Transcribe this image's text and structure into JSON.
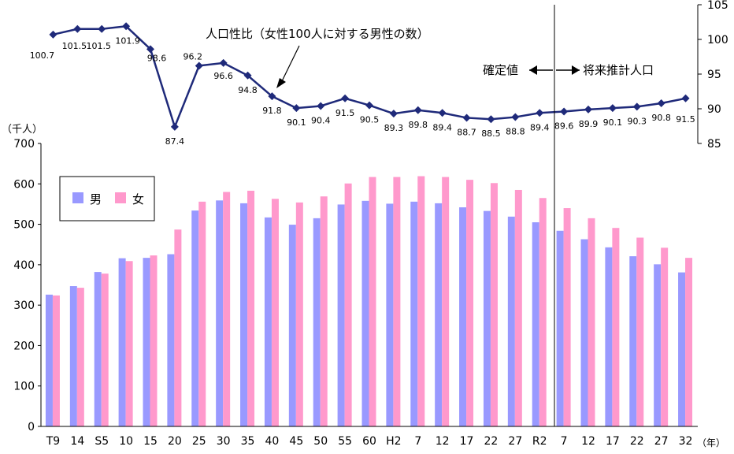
{
  "chart_data": [
    {
      "type": "bar",
      "yunit": "（千人）",
      "xunit": "（年）",
      "ylim": [
        0,
        700
      ],
      "yticks": [
        0,
        100,
        200,
        300,
        400,
        500,
        600,
        700
      ],
      "categories": [
        "T9",
        "14",
        "S5",
        "10",
        "15",
        "20",
        "25",
        "30",
        "35",
        "40",
        "45",
        "50",
        "55",
        "60",
        "H2",
        "7",
        "12",
        "17",
        "22",
        "27",
        "R2",
        "7",
        "12",
        "17",
        "22",
        "27",
        "32"
      ],
      "series": [
        {
          "name": "男",
          "color": "#9999ff",
          "values": [
            326,
            347,
            382,
            416,
            417,
            426,
            534,
            559,
            552,
            517,
            499,
            515,
            549,
            558,
            551,
            556,
            552,
            542,
            533,
            519,
            505,
            484,
            463,
            443,
            421,
            401,
            381
          ]
        },
        {
          "name": "女",
          "color": "#ff99cc",
          "values": [
            324,
            343,
            378,
            409,
            423,
            487,
            556,
            580,
            583,
            563,
            554,
            569,
            601,
            617,
            617,
            619,
            617,
            610,
            602,
            585,
            565,
            540,
            515,
            491,
            467,
            442,
            417
          ]
        }
      ],
      "legend": "top-left",
      "grid": false
    },
    {
      "type": "line",
      "title": "人口性比（女性100人に対する男性の数）",
      "ylim": [
        85,
        105
      ],
      "yticks": [
        85,
        90,
        95,
        100,
        105
      ],
      "axis": "right",
      "color": "#1f2a7a",
      "values": [
        100.7,
        101.5,
        101.5,
        101.9,
        98.6,
        87.4,
        96.2,
        96.6,
        94.8,
        91.8,
        90.1,
        90.4,
        91.5,
        90.5,
        89.3,
        89.8,
        89.4,
        88.7,
        88.5,
        88.8,
        89.4,
        89.6,
        89.9,
        90.1,
        90.3,
        90.8,
        91.5
      ]
    }
  ],
  "annotations": {
    "confirmed": "確定値",
    "projection": "将来推計人口"
  }
}
